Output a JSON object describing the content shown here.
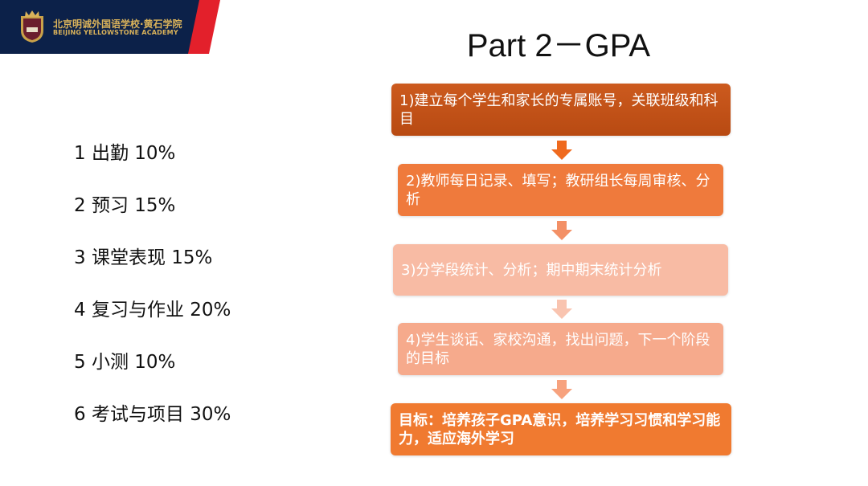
{
  "header": {
    "logo_alt": "school-crest",
    "school_name_cn": "北京明诚外国语学校·黄石学院",
    "school_name_en": "BEIJING YELLOWSTONE ACADEMY"
  },
  "title": "Part 2－GPA",
  "components": [
    "1 出勤 10%",
    "2 预习 15%",
    "3 课堂表现 15%",
    "4 复习与作业 20%",
    "5 小测 10%",
    "6 考试与项目 30%"
  ],
  "flow": {
    "steps": [
      {
        "text": "1)建立每个学生和家长的专属账号，关联班级和科目",
        "color": "#c2531a"
      },
      {
        "text": "2)教师每日记录、填写；教研组长每周审核、分析",
        "color": "#ef7a3c"
      },
      {
        "text": "3)分学段统计、分析；期中期末统计分析",
        "color": "#f8bba4"
      },
      {
        "text": "4)学生谈话、家校沟通，找出问题，下一个阶段的目标",
        "color": "#f6aa8c"
      },
      {
        "text": "目标：培养孩子GPA意识，培养学习习惯和学习能力，适应海外学习",
        "color": "#f07a30"
      }
    ],
    "arrow_colors": [
      "#ef6a1e",
      "#f39066",
      "#f9c4b0",
      "#f7a27e"
    ]
  }
}
